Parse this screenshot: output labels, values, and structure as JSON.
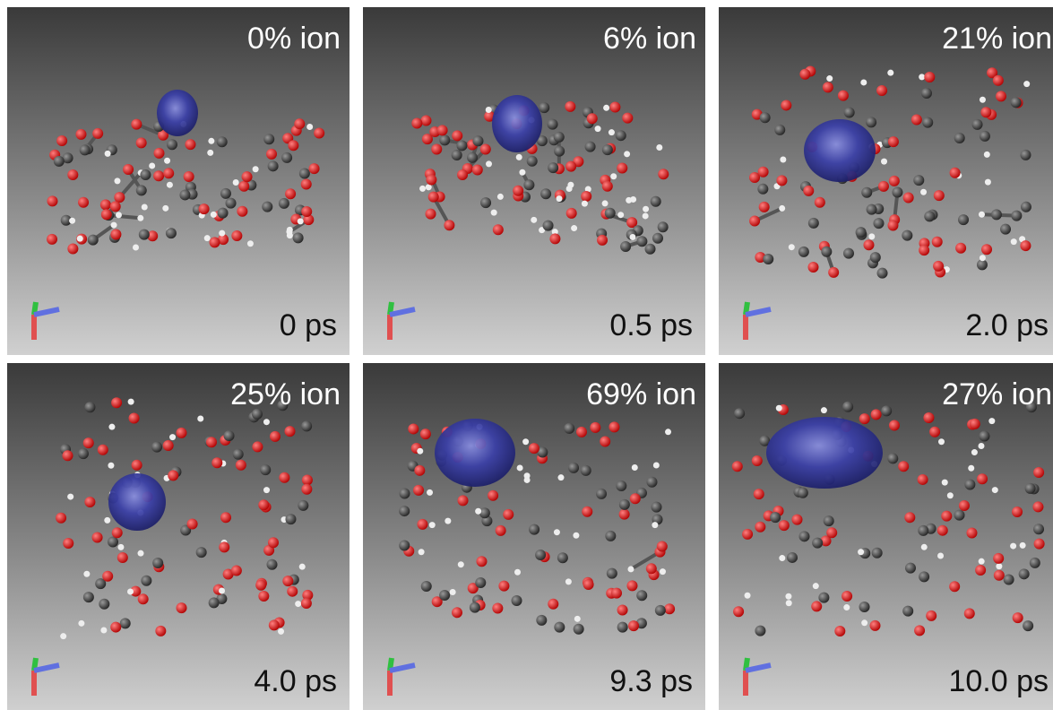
{
  "panels": [
    {
      "ion": "0% ion",
      "time": "0 ps"
    },
    {
      "ion": "6% ion",
      "time": "0.5 ps"
    },
    {
      "ion": "21% ion",
      "time": "2.0 ps"
    },
    {
      "ion": "25% ion",
      "time": "4.0 ps"
    },
    {
      "ion": "69% ion",
      "time": "9.3 ps"
    },
    {
      "ion": "27% ion",
      "time": "10.0 ps"
    }
  ]
}
